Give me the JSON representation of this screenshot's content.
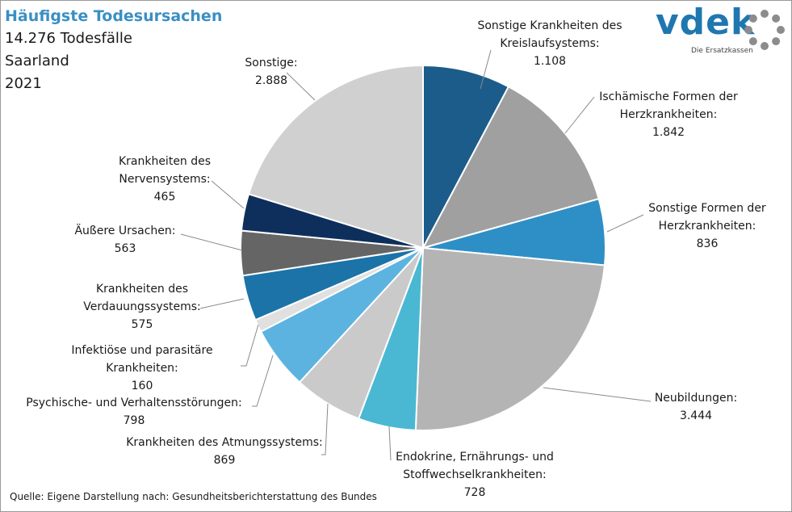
{
  "header": {
    "title": "Häufigste Todesursachen",
    "line1": "14.276 Todesfälle",
    "line2": "Saarland",
    "line3": "2021"
  },
  "source": "Quelle: Eigene Darstellung nach: Gesundheitsberichterstattung  des Bundes",
  "logo": {
    "word": "vdek",
    "tagline": "Die Ersatzkassen",
    "ring_color": "#8c8c8c"
  },
  "chart_data": {
    "type": "pie",
    "total": 14276,
    "start": "top, clockwise",
    "slices": [
      {
        "label": "Sonstige Krankheiten des Kreislaufsystems:",
        "value": 1108,
        "value_label": "1.108",
        "color": "#1b5c8a"
      },
      {
        "label": "Ischämische Formen der Herzkrankheiten:",
        "value": 1842,
        "value_label": "1.842",
        "color": "#a0a0a0"
      },
      {
        "label": "Sonstige Formen der Herzkrankheiten:",
        "value": 836,
        "value_label": "836",
        "color": "#2e8fc6"
      },
      {
        "label": "Neubildungen:",
        "value": 3444,
        "value_label": "3.444",
        "color": "#b4b4b4"
      },
      {
        "label": "Endokrine, Ernährungs- und Stoffwechselkrankheiten:",
        "value": 728,
        "value_label": "728",
        "color": "#4ab8d2"
      },
      {
        "label": "Krankheiten des Atmungssystems:",
        "value": 869,
        "value_label": "869",
        "color": "#cacaca"
      },
      {
        "label": "Psychische- und Verhaltensstörungen:",
        "value": 798,
        "value_label": "798",
        "color": "#5cb3e0"
      },
      {
        "label": "Infektiöse und parasitäre Krankheiten:",
        "value": 160,
        "value_label": "160",
        "color": "#e0e0e0"
      },
      {
        "label": "Krankheiten des Verdauungssystems:",
        "value": 575,
        "value_label": "575",
        "color": "#1b73a8"
      },
      {
        "label": "Äußere Ursachen:",
        "value": 563,
        "value_label": "563",
        "color": "#656565"
      },
      {
        "label": "Krankheiten des Nervensystems:",
        "value": 465,
        "value_label": "465",
        "color": "#0e2f5c"
      },
      {
        "label": "Sonstige:",
        "value": 2888,
        "value_label": "2.888",
        "color": "#d0d0d0"
      }
    ]
  }
}
